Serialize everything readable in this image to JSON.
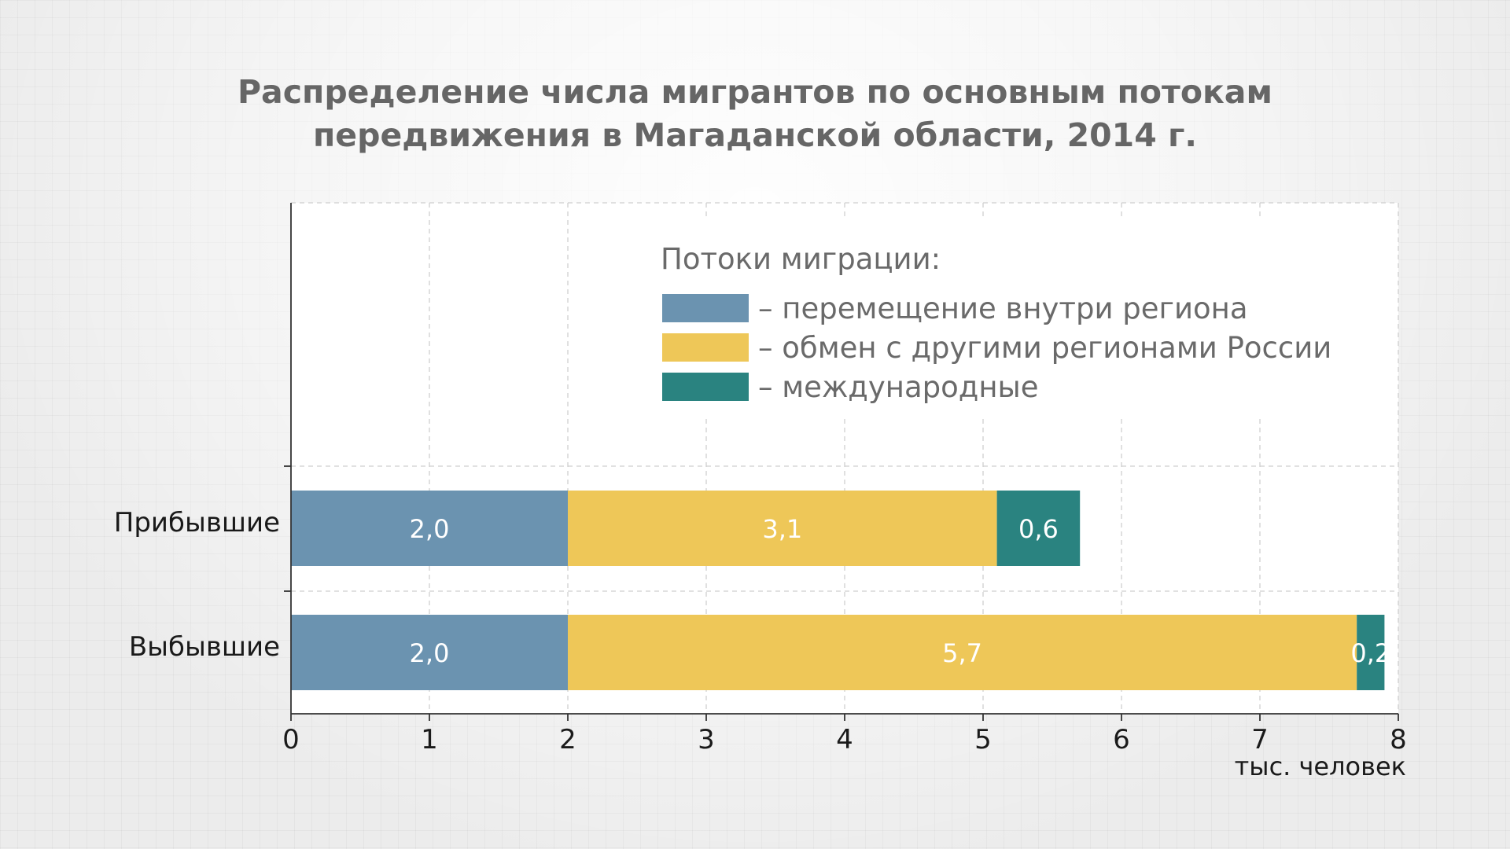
{
  "title": {
    "line1": "Распределение числа мигрантов по основным потокам",
    "line2": "передвижения в Магаданской области, 2014 г."
  },
  "legend": {
    "title": "Потоки миграции:"
  },
  "colors": {
    "plot_background": "#ffffff",
    "grid": "#cfcfcf",
    "axis": "#333333"
  },
  "chart_data": {
    "type": "bar",
    "orientation": "horizontal",
    "stacked": true,
    "title": "Распределение числа мигрантов по основным потокам передвижения в Магаданской области, 2014 г.",
    "categories": [
      "Прибывшие",
      "Выбывшие"
    ],
    "series": [
      {
        "name": "– перемещение внутри региона",
        "values": [
          2.0,
          2.0
        ],
        "labels": [
          "2,0",
          "2,0"
        ],
        "color": "#6b93b0"
      },
      {
        "name": "– обмен с другими регионами России",
        "values": [
          3.1,
          5.7
        ],
        "labels": [
          "3,1",
          "5,7"
        ],
        "color": "#eec758"
      },
      {
        "name": "– международные",
        "values": [
          0.6,
          0.2
        ],
        "labels": [
          "0,6",
          "0,2"
        ],
        "color": "#2a8380"
      }
    ],
    "x_ticks": [
      "0",
      "1",
      "2",
      "3",
      "4",
      "5",
      "6",
      "7",
      "8"
    ],
    "xlim": [
      0,
      8
    ],
    "xlabel": "тыс. человек",
    "ylabel": "",
    "grid": true,
    "legend_position": "top-right"
  }
}
